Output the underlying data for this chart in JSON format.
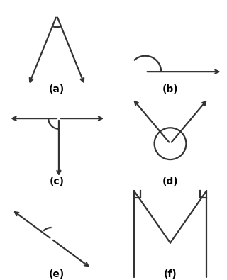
{
  "background_color": "#ffffff",
  "label_fontsize": 10,
  "labels": [
    "(a)",
    "(b)",
    "(c)",
    "(d)",
    "(e)",
    "(f)"
  ],
  "arrow_color": "#333333",
  "arc_color": "#333333",
  "lw": 1.6
}
